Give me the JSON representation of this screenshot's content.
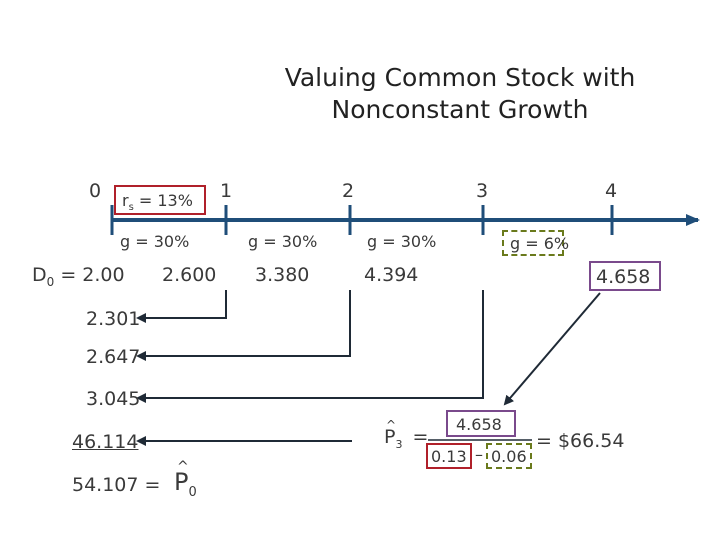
{
  "title": "Valuing Common Stock with Nonconstant Growth",
  "timeline": {
    "periods": [
      "0",
      "1",
      "2",
      "3",
      "4"
    ],
    "required_return": "r",
    "required_return_sub": "s",
    "required_return_value": " = 13%",
    "growth_rates": [
      "g = 30%",
      "g = 30%",
      "g = 30%",
      "g = 6%"
    ]
  },
  "dividends": {
    "d0_label": "D",
    "d0_sub": "0",
    "d0_value": " = 2.00",
    "values": [
      "2.600",
      "3.380",
      "4.394",
      "4.658"
    ]
  },
  "present_values": [
    "2.301",
    "2.647",
    "3.045",
    "46.114"
  ],
  "total": {
    "value": "54.107 =",
    "symbol": "P",
    "symbol_sub": "0"
  },
  "terminal": {
    "symbol": "P",
    "symbol_sub": "3",
    "equals": "=",
    "numerator": "4.658",
    "denom_left": "0.13",
    "denom_minus": "–",
    "denom_right": "0.06",
    "result": "= $66.54"
  },
  "colors": {
    "timeline": "#1f4e79",
    "red": "#b0202a",
    "purple": "#7a4a8c",
    "green": "#6a7a1c"
  }
}
